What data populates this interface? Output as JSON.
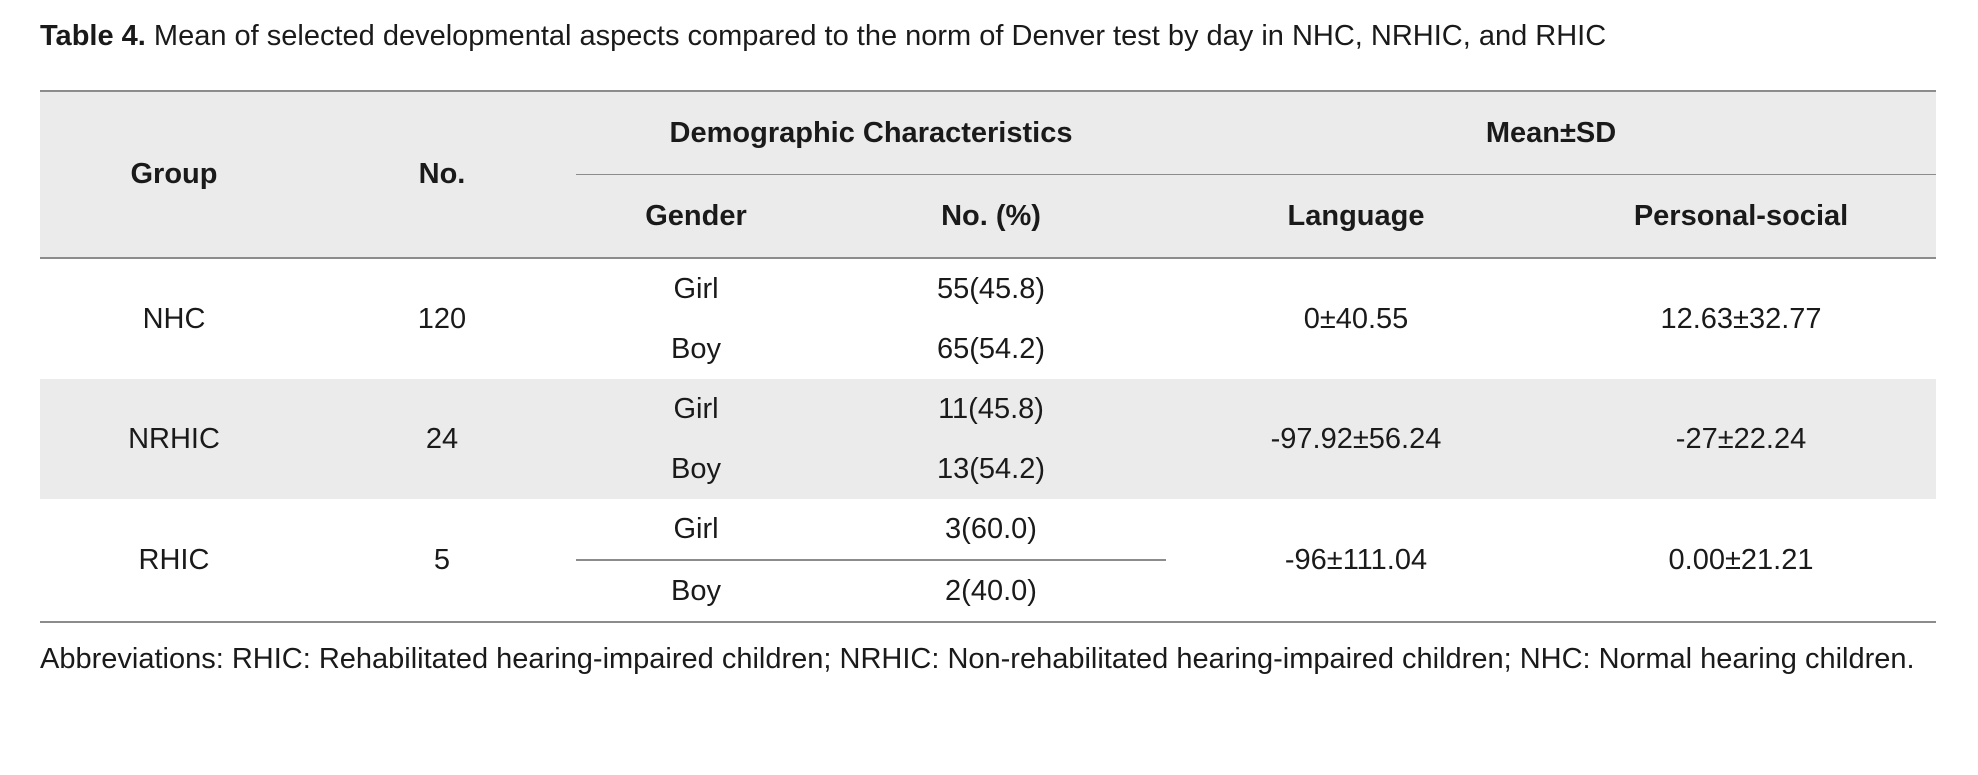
{
  "caption": {
    "label": "Table 4.",
    "text": "Mean of selected developmental aspects compared to the norm of Denver test by day in NHC, NRHIC, and RHIC"
  },
  "table": {
    "headers": {
      "group": "Group",
      "no": "No.",
      "demographic": "Demographic Characteristics",
      "mean_sd": "Mean±SD",
      "gender": "Gender",
      "no_pct": "No. (%)",
      "language": "Language",
      "personal_social": "Personal-social"
    },
    "rows": [
      {
        "group": "NHC",
        "no": "120",
        "girl": "Girl",
        "girl_pct": "55(45.8)",
        "boy": "Boy",
        "boy_pct": "65(54.2)",
        "language": "0±40.55",
        "personal_social": "12.63±32.77"
      },
      {
        "group": "NRHIC",
        "no": "24",
        "girl": "Girl",
        "girl_pct": "11(45.8)",
        "boy": "Boy",
        "boy_pct": "13(54.2)",
        "language": "-97.92±56.24",
        "personal_social": "-27±22.24"
      },
      {
        "group": "RHIC",
        "no": "5",
        "girl": "Girl",
        "girl_pct": "3(60.0)",
        "boy": "Boy",
        "boy_pct": "2(40.0)",
        "language": "-96±111.04",
        "personal_social": "0.00±21.21"
      }
    ]
  },
  "footnote": "Abbreviations: RHIC: Rehabilitated hearing-impaired children; NRHIC: Non-rehabilitated hearing-impaired children; NHC: Normal hearing children."
}
